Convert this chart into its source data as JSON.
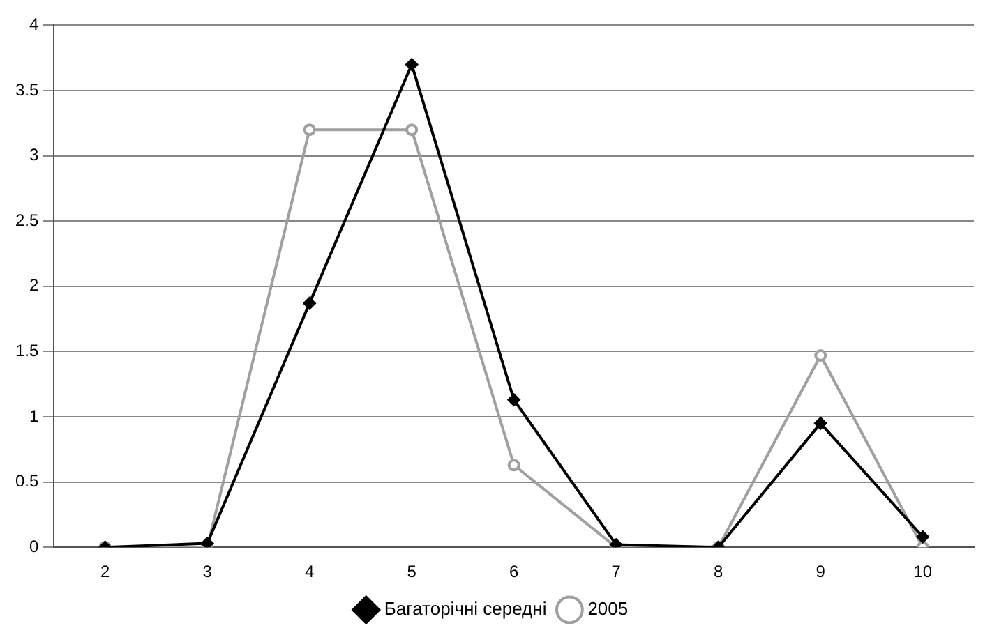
{
  "chart_data": {
    "type": "line",
    "categories": [
      "2",
      "3",
      "4",
      "5",
      "6",
      "7",
      "8",
      "9",
      "10"
    ],
    "series": [
      {
        "name": "Багаторічні середні",
        "color": "#000000",
        "marker": "diamond",
        "values": [
          0,
          0.03,
          1.87,
          3.7,
          1.13,
          0.02,
          0,
          0.95,
          0.08
        ]
      },
      {
        "name": "2005",
        "color": "#a0a0a0",
        "marker": "circle",
        "values": [
          0,
          0,
          3.2,
          3.2,
          0.63,
          0,
          0,
          1.47,
          0
        ]
      }
    ],
    "ylim": [
      0,
      4
    ],
    "yticks": [
      0,
      0.5,
      1,
      1.5,
      2,
      2.5,
      3,
      3.5,
      4
    ],
    "grid": "y",
    "legend": "bottom"
  }
}
